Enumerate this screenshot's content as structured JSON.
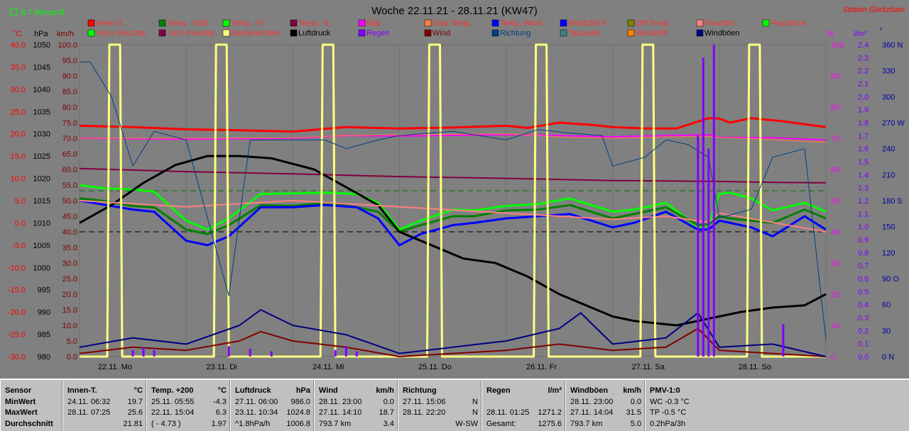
{
  "header": {
    "monat": "6.7 Monat-Ø",
    "title": "Woche 22.11.21 - 28.11.21 (KW47)",
    "station": "Station Göritzhain"
  },
  "colors": {
    "background": "#808080",
    "innen": "#ff0000",
    "temp200": "#008000",
    "temp5": "#00ff00",
    "tempm5": "#800040",
    "bad": "#ff00ff",
    "gast": "#ff8040",
    "tempwind": "#0000ff",
    "windchillx": "#0000ff",
    "difftemp": "#808000",
    "feuchtei": "#ff8080",
    "feuchtea": "#00ff00",
    "feuchte5": "#00ff00",
    "feuchtem5": "#800040",
    "sonne": "#ffff80",
    "luftdruck": "#000000",
    "regen": "#8000ff",
    "wind": "#800000",
    "richtung": "#004080",
    "taupunkt": "#408080",
    "windchill": "#ff8000",
    "windboeen": "#000080"
  },
  "legend": {
    "row1": [
      {
        "label": "Innen-T.",
        "color": "#ff0000",
        "text": "#ff3030"
      },
      {
        "label": "Temp. +200",
        "color": "#008000",
        "text": "#ff3030"
      },
      {
        "label": "Temp. +5",
        "color": "#00ff00",
        "text": "#ff3030"
      },
      {
        "label": "Temp. -5",
        "color": "#800040",
        "text": "#ff3030"
      },
      {
        "label": "Bad",
        "color": "#ff00ff",
        "text": "#ff3030"
      },
      {
        "label": "Gast Temp",
        "color": "#ff8040",
        "text": "#ff3030"
      },
      {
        "label": "Temp. Wind",
        "color": "#0000ff",
        "text": "#ff3030"
      },
      {
        "label": "Windchill X",
        "color": "#0000ff",
        "text": "#ff3030"
      },
      {
        "label": "Diff Temp.",
        "color": "#808000",
        "text": "#ff3030"
      },
      {
        "label": "Feuchte I.",
        "color": "#ff8080",
        "text": "#ff3030"
      },
      {
        "label": "Feuchte A.",
        "color": "#00ff00",
        "text": "#ff3030"
      }
    ],
    "row2": [
      {
        "label": "+5cm Feuchte",
        "color": "#00ff00",
        "text": "#ff3030"
      },
      {
        "label": "-5cm Feuchte",
        "color": "#800040",
        "text": "#ff3030"
      },
      {
        "label": "Sonnenschein",
        "color": "#ffff80",
        "text": "#ff3030"
      },
      {
        "label": "Luftdruck",
        "color": "#000000",
        "text": "#000000"
      },
      {
        "label": "Regen",
        "color": "#8000ff",
        "text": "#8000ff"
      },
      {
        "label": "Wind",
        "color": "#800000",
        "text": "#800000"
      },
      {
        "label": "Richtung",
        "color": "#004080",
        "text": "#004080"
      },
      {
        "label": "Taupunkt",
        "color": "#408080",
        "text": "#ff3030"
      },
      {
        "label": "Windchill",
        "color": "#ff8000",
        "text": "#ff3030"
      },
      {
        "label": "Windböen",
        "color": "#000080",
        "text": "#000000"
      }
    ]
  },
  "axes": {
    "celsius_unit": "°C",
    "hpa_unit": "hPa",
    "kmh_unit": "km/h",
    "percent_unit": "%",
    "lm2_unit": "l/m²",
    "deg_unit": "°",
    "celsius": [
      "40.0",
      "35.0",
      "30.0",
      "25.0",
      "20.0",
      "15.0",
      "10.0",
      "5.0",
      "0.0",
      "-5.0",
      "-10.0",
      "-15.0",
      "-20.0",
      "-25.0",
      "-30.0"
    ],
    "hpa": [
      "1050",
      "1045",
      "1040",
      "1035",
      "1030",
      "1025",
      "1020",
      "1015",
      "1010",
      "1005",
      "1000",
      "995",
      "990",
      "985",
      "980"
    ],
    "kmh": [
      "100.0",
      "95.0",
      "90.0",
      "85.0",
      "80.0",
      "75.0",
      "70.0",
      "65.0",
      "60.0",
      "55.0",
      "50.0",
      "45.0",
      "40.0",
      "35.0",
      "30.0",
      "25.0",
      "20.0",
      "15.0",
      "10.0",
      "5.0",
      "0.0"
    ],
    "percent": [
      "100",
      "90",
      "80",
      "70",
      "60",
      "50",
      "40",
      "30",
      "20",
      "10",
      "0"
    ],
    "lm2": [
      "2.4",
      "2.3",
      "2.2",
      "2.1",
      "2.0",
      "1.9",
      "1.8",
      "1.7",
      "1.6",
      "1.5",
      "1.4",
      "1.3",
      "1.2",
      "1.1",
      "1.0",
      "0.9",
      "0.8",
      "0.7",
      "0.6",
      "0.5",
      "0.4",
      "0.3",
      "0.2",
      "0.1",
      "0.0"
    ],
    "direction": [
      "360 N",
      "330",
      "300",
      "270 W",
      "240",
      "210",
      "180 S",
      "150",
      "120",
      "90 O",
      "60",
      "30",
      "0 N"
    ],
    "days": [
      "22.11. Mo",
      "23.11. Di",
      "24.11. Mi",
      "25.11. Do",
      "26.11. Fr",
      "27.11. Sa",
      "28.11. So"
    ]
  },
  "chart_data": {
    "type": "line",
    "title": "Woche 22.11.21 - 28.11.21 (KW47)",
    "x_range_days": [
      0,
      7
    ],
    "ylim_celsius": [
      -30,
      40
    ],
    "ylim_hpa": [
      980,
      1050
    ],
    "ylim_kmh": [
      0,
      100
    ],
    "ylim_percent": [
      0,
      100
    ],
    "ylim_lm2": [
      0,
      2.4
    ],
    "ylim_direction": [
      0,
      360
    ],
    "reference_lines": {
      "luftdruck_dashed_hpa": 1008,
      "green_dashed_celsius": 7.2
    },
    "series": [
      {
        "name": "Innen-T.",
        "key": "innen",
        "axis": "celsius",
        "width": 3,
        "x": [
          0,
          0.5,
          1,
          1.5,
          2,
          2.5,
          3,
          3.5,
          4,
          4.2,
          4.5,
          4.8,
          5,
          5.3,
          5.6,
          5.9,
          6,
          6.1,
          6.3,
          6.6,
          7
        ],
        "y": [
          21.8,
          21.5,
          21.0,
          20.8,
          20.5,
          21.5,
          21.2,
          21.4,
          21.8,
          21.3,
          22.5,
          22.0,
          21.5,
          21.2,
          21.2,
          23.5,
          23.4,
          22.5,
          23.5,
          22.8,
          21.5
        ]
      },
      {
        "name": "Bad",
        "key": "bad",
        "axis": "celsius",
        "width": 2,
        "x": [
          0,
          1,
          2,
          2.5,
          3,
          4,
          4.5,
          5,
          5.5,
          5.9,
          6,
          6.5,
          7
        ],
        "y": [
          19.0,
          18.8,
          19.0,
          19.6,
          19.5,
          19.8,
          19.6,
          19.3,
          19.6,
          19.8,
          19.2,
          19.1,
          18.6
        ]
      },
      {
        "name": "Gast Temp",
        "key": "gast",
        "axis": "celsius",
        "width": 1,
        "x": [
          0,
          1,
          2,
          2.5,
          3,
          4,
          4.5,
          5,
          5.5,
          5.9,
          6,
          6.5,
          7
        ],
        "y": [
          19.0,
          19.0,
          19.1,
          19.6,
          19.8,
          20.0,
          19.3,
          19.0,
          19.3,
          19.4,
          19.2,
          18.7,
          18.1
        ]
      },
      {
        "name": "Temp. -5",
        "key": "tempm5",
        "axis": "celsius",
        "width": 2,
        "x": [
          0,
          1,
          2,
          3,
          4,
          5,
          5.5,
          6,
          6.5,
          7
        ],
        "y": [
          12.2,
          11.5,
          11.0,
          10.4,
          10.0,
          9.5,
          9.4,
          9.3,
          9.1,
          9.0
        ]
      },
      {
        "name": "Temp. +5",
        "key": "temp5",
        "axis": "celsius",
        "width": 3,
        "x": [
          0,
          0.2,
          0.5,
          0.7,
          1,
          1.2,
          1.4,
          1.7,
          2,
          2.3,
          2.6,
          2.8,
          3,
          3.2,
          3.5,
          3.7,
          4,
          4.3,
          4.6,
          4.8,
          5,
          5.2,
          5.5,
          5.8,
          5.9,
          6,
          6.1,
          6.3,
          6.5,
          6.8,
          7
        ],
        "y": [
          8.5,
          7.8,
          7.5,
          7.0,
          0.5,
          -1.5,
          1.0,
          6.5,
          6.6,
          6.8,
          6.5,
          4.5,
          -1.5,
          0.5,
          3.0,
          2.8,
          3.8,
          4.2,
          5.5,
          4.0,
          2.5,
          3.0,
          4.5,
          -1.0,
          -0.5,
          6.5,
          6.8,
          5.5,
          2.8,
          4.5,
          2.5
        ]
      },
      {
        "name": "Temp. +200",
        "key": "temp200",
        "axis": "celsius",
        "width": 3,
        "x": [
          0,
          0.2,
          0.5,
          0.7,
          1,
          1.2,
          1.4,
          1.7,
          2,
          2.3,
          2.6,
          2.8,
          3,
          3.2,
          3.5,
          3.7,
          4,
          4.3,
          4.6,
          4.8,
          5,
          5.2,
          5.5,
          5.8,
          5.9,
          6,
          6.1,
          6.3,
          6.5,
          6.8,
          7
        ],
        "y": [
          5.5,
          5.0,
          3.8,
          3.5,
          -1.5,
          -2.5,
          -0.5,
          4.0,
          3.8,
          4.5,
          3.5,
          2.5,
          -2.0,
          -0.5,
          1.5,
          1.5,
          2.8,
          3.0,
          4.0,
          2.5,
          1.0,
          2.0,
          3.5,
          -0.5,
          -0.3,
          1.5,
          1.0,
          0.5,
          0.0,
          3.0,
          1.0
        ]
      },
      {
        "name": "Temp. Wind",
        "key": "tempwind",
        "axis": "celsius",
        "width": 3,
        "x": [
          0,
          0.2,
          0.5,
          0.7,
          1,
          1.2,
          1.4,
          1.7,
          2,
          2.3,
          2.6,
          2.8,
          3,
          3.2,
          3.5,
          3.7,
          4,
          4.3,
          4.6,
          4.8,
          5,
          5.2,
          5.5,
          5.8,
          5.9,
          6,
          6.1,
          6.3,
          6.5,
          6.8,
          7
        ],
        "y": [
          5.0,
          4.2,
          3.0,
          2.5,
          -4.0,
          -5.0,
          -3.0,
          3.5,
          3.5,
          4.0,
          3.5,
          1.0,
          -5.0,
          -2.5,
          -0.5,
          0.0,
          1.0,
          1.5,
          2.0,
          0.5,
          -1.0,
          0.0,
          2.5,
          -1.5,
          -1.5,
          0.5,
          0.0,
          -1.0,
          -3.0,
          1.5,
          -1.5
        ]
      },
      {
        "name": "Luftdruck",
        "key": "luftdruck",
        "axis": "hpa",
        "width": 3,
        "x": [
          0,
          0.3,
          0.6,
          0.9,
          1.2,
          1.5,
          1.8,
          2.2,
          2.5,
          2.8,
          3,
          3.3,
          3.6,
          3.9,
          4.2,
          4.5,
          4.8,
          5,
          5.2,
          5.4,
          5.6,
          5.8,
          6,
          6.2,
          6.5,
          6.8,
          7
        ],
        "y": [
          1010,
          1014,
          1019,
          1023,
          1025,
          1025,
          1024.5,
          1022,
          1018,
          1014,
          1008,
          1005,
          1002,
          1001,
          998,
          994,
          991,
          989,
          988,
          987.5,
          987,
          988,
          989,
          990,
          991,
          991.5,
          994
        ]
      },
      {
        "name": "Feuchte I.",
        "key": "feuchtei",
        "axis": "percent",
        "width": 2,
        "x": [
          0,
          0.5,
          1,
          1.5,
          2,
          2.5,
          3,
          3.5,
          4,
          4.5,
          5,
          5.5,
          5.9,
          6,
          6.5,
          7
        ],
        "y": [
          50,
          49,
          48,
          49,
          50,
          49,
          48,
          47,
          46,
          45,
          44,
          45,
          43,
          46,
          43,
          40
        ]
      },
      {
        "name": "Sonnenschein",
        "key": "sonne",
        "axis": "percent",
        "width": 3,
        "x": [
          0,
          0.26,
          0.28,
          0.38,
          0.4,
          1.26,
          1.28,
          1.38,
          1.4,
          2.26,
          2.28,
          2.38,
          2.4,
          3.26,
          3.28,
          3.38,
          3.4,
          4.26,
          4.28,
          4.38,
          4.4,
          5.26,
          5.28,
          5.38,
          5.4,
          6.26,
          6.28,
          6.38,
          6.4,
          7
        ],
        "y": [
          0,
          0,
          100,
          100,
          0,
          0,
          100,
          100,
          0,
          0,
          100,
          100,
          0,
          0,
          100,
          100,
          0,
          0,
          100,
          100,
          0,
          0,
          100,
          100,
          0,
          0,
          100,
          100,
          0,
          0
        ]
      },
      {
        "name": "Wind",
        "key": "wind",
        "axis": "kmh",
        "width": 2,
        "x": [
          0,
          0.5,
          1,
          1.5,
          1.7,
          2,
          2.5,
          3,
          3.5,
          4,
          4.5,
          5,
          5.5,
          5.8,
          6,
          6.5,
          7
        ],
        "y": [
          1,
          3,
          2,
          5,
          8,
          5,
          3,
          0,
          1,
          2,
          4,
          2,
          3,
          9,
          2,
          1,
          0
        ]
      },
      {
        "name": "Windböen",
        "key": "windboeen",
        "axis": "kmh",
        "width": 2,
        "x": [
          0,
          0.5,
          1,
          1.5,
          1.7,
          2,
          2.5,
          3,
          3.5,
          4,
          4.5,
          4.7,
          5,
          5.5,
          5.8,
          6,
          6.5,
          7
        ],
        "y": [
          3,
          6,
          4,
          10,
          15,
          10,
          7,
          1,
          3,
          5,
          9,
          14,
          4,
          6,
          14,
          3,
          4,
          0
        ]
      },
      {
        "name": "Richtung",
        "key": "richtung",
        "axis": "direction",
        "width": 1,
        "x": [
          0,
          0.1,
          0.3,
          0.5,
          0.7,
          1,
          1.2,
          1.4,
          1.6,
          2,
          2.3,
          2.5,
          2.8,
          3,
          3.5,
          4,
          4.3,
          4.6,
          4.9,
          5,
          5.3,
          5.5,
          5.7,
          5.9,
          6,
          6.3,
          6.5,
          6.8,
          7
        ],
        "y": [
          340,
          340,
          300,
          220,
          260,
          250,
          160,
          70,
          250,
          250,
          250,
          240,
          250,
          255,
          260,
          250,
          262,
          258,
          255,
          220,
          230,
          250,
          245,
          230,
          160,
          170,
          230,
          240,
          20
        ]
      },
      {
        "name": "Regen",
        "key": "regen",
        "axis": "lm2",
        "type": "bar",
        "x": [
          0.5,
          0.6,
          0.7,
          1.4,
          1.6,
          1.8,
          2.4,
          2.5,
          2.6,
          5.8,
          5.85,
          5.9,
          5.95,
          6.6
        ],
        "y": [
          0.05,
          0.07,
          0.05,
          0.08,
          0.06,
          0.04,
          0.05,
          0.08,
          0.04,
          1.7,
          2.3,
          1.6,
          2.4,
          0.25
        ]
      }
    ]
  },
  "stats": {
    "sensor": {
      "h": "Sensor",
      "r1": "MinWert",
      "r2": "MaxWert",
      "r3": "Durchschnitt"
    },
    "innen": {
      "h": "Innen-T.",
      "u": "°C",
      "r1a": "24.11.  06:32",
      "r1b": "19.7",
      "r2a": "28.11.  07:25",
      "r2b": "25.6",
      "r3a": "",
      "r3b": "21.81"
    },
    "temp200": {
      "h": "Temp. +200",
      "u": "°C",
      "r1a": "25.11.  05:55",
      "r1b": "-4.3",
      "r2a": "22.11.  15:04",
      "r2b": "6.3",
      "r3a": "( - 4.73 )",
      "r3b": "1.97"
    },
    "luftdruck": {
      "h": "Luftdruck",
      "u": "hPa",
      "r1a": "27.11.  06:00",
      "r1b": "986.0",
      "r2a": "23.11.  10:34",
      "r2b": "1024.8",
      "r3a": "^1.8hPa/h",
      "r3b": "1006.8"
    },
    "wind": {
      "h": "Wind",
      "u": "km/h",
      "r1a": "28.11.  23:00",
      "r1b": "0.0",
      "r2a": "27.11.  14:10",
      "r2b": "18.7",
      "r3a": "793.7 km",
      "r3b": "3.4"
    },
    "richtung": {
      "h": "Richtung",
      "u": "",
      "r1a": "27.11.  15:06",
      "r1b": "N",
      "r2a": "28.11.  22:20",
      "r2b": "N",
      "r3a": "",
      "r3b": "W-SW"
    },
    "regen": {
      "h": "Regen",
      "u": "l/m²",
      "r1a": "",
      "r1b": "",
      "r2a": "28.11.  01:25",
      "r2b": "1271.2",
      "r3a": "Gesamt:",
      "r3b": "1275.6"
    },
    "boeen": {
      "h": "Windböen",
      "u": "km/h",
      "r1a": "28.11.  23:00",
      "r1b": "0.0",
      "r2a": "27.11.  14:04",
      "r2b": "31.5",
      "r3a": "793.7 km",
      "r3b": "5.0"
    },
    "pmv": {
      "h": "PMV-1:0",
      "u": "",
      "r1a": "WC -0.3 °C",
      "r1b": "",
      "r2a": "TP -0.5 °C",
      "r2b": "",
      "r3a": "0.2hPa/3h",
      "r3b": ""
    }
  }
}
